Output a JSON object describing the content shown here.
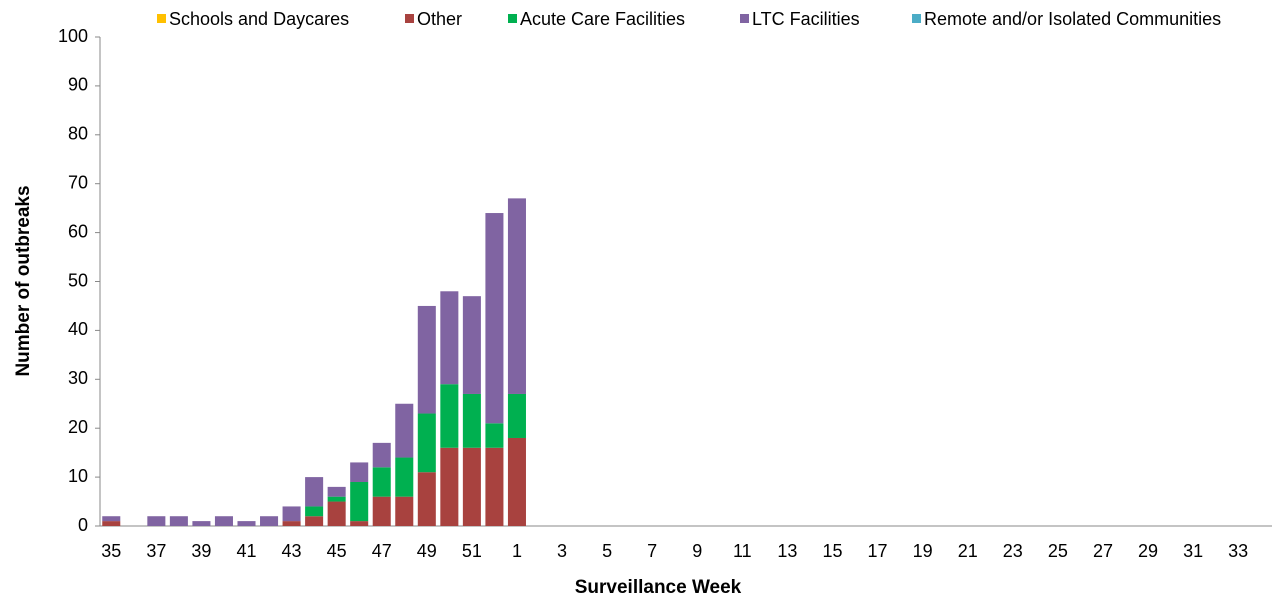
{
  "chart_data": {
    "type": "stacked_bar",
    "x_label": "Surveillance Week",
    "y_label": "Number of outbreaks",
    "categories": [
      "35",
      null,
      "37",
      null,
      "39",
      null,
      "41",
      null,
      "43",
      null,
      "45",
      null,
      "47",
      null,
      "49",
      null,
      "51",
      null,
      "1",
      null,
      "3",
      null,
      "5",
      null,
      "7",
      null,
      "9",
      null,
      "11",
      null,
      "13",
      null,
      "15",
      null,
      "17",
      null,
      "19",
      null,
      "21",
      null,
      "23",
      null,
      "25",
      null,
      "27",
      null,
      "29",
      null,
      "31",
      null,
      "33",
      null
    ],
    "series": [
      {
        "name": "Schools and Daycares",
        "color": "#ffc000",
        "values": [
          0,
          0,
          0,
          0,
          0,
          0,
          0,
          0,
          0,
          0,
          0,
          0,
          0,
          0,
          0,
          0,
          0,
          0,
          0,
          null,
          null,
          null,
          null,
          null,
          null,
          null,
          null,
          null,
          null,
          null,
          null,
          null,
          null,
          null,
          null,
          null,
          null,
          null,
          null,
          null,
          null,
          null,
          null,
          null,
          null,
          null,
          null,
          null,
          null,
          null,
          null,
          null
        ]
      },
      {
        "name": "Other",
        "color": "#a8423f",
        "values": [
          1,
          0,
          0,
          0,
          0,
          0,
          0,
          0,
          1,
          2,
          5,
          1,
          6,
          6,
          11,
          16,
          16,
          16,
          18,
          null,
          null,
          null,
          null,
          null,
          null,
          null,
          null,
          null,
          null,
          null,
          null,
          null,
          null,
          null,
          null,
          null,
          null,
          null,
          null,
          null,
          null,
          null,
          null,
          null,
          null,
          null,
          null,
          null,
          null,
          null,
          null,
          null
        ]
      },
      {
        "name": "Acute Care Facilities",
        "color": "#00b050",
        "values": [
          0,
          0,
          0,
          0,
          0,
          0,
          0,
          0,
          0,
          2,
          1,
          8,
          6,
          8,
          12,
          13,
          11,
          5,
          9,
          null,
          null,
          null,
          null,
          null,
          null,
          null,
          null,
          null,
          null,
          null,
          null,
          null,
          null,
          null,
          null,
          null,
          null,
          null,
          null,
          null,
          null,
          null,
          null,
          null,
          null,
          null,
          null,
          null,
          null,
          null,
          null,
          null
        ]
      },
      {
        "name": "LTC Facilities",
        "color": "#8064a2",
        "values": [
          1,
          0,
          2,
          2,
          1,
          2,
          1,
          2,
          3,
          6,
          2,
          4,
          5,
          11,
          22,
          19,
          20,
          43,
          40,
          null,
          null,
          null,
          null,
          null,
          null,
          null,
          null,
          null,
          null,
          null,
          null,
          null,
          null,
          null,
          null,
          null,
          null,
          null,
          null,
          null,
          null,
          null,
          null,
          null,
          null,
          null,
          null,
          null,
          null,
          null,
          null,
          null
        ]
      },
      {
        "name": "Remote and/or Isolated Communities",
        "color": "#4bacc6",
        "values": [
          0,
          0,
          0,
          0,
          0,
          0,
          0,
          0,
          0,
          0,
          0,
          0,
          0,
          0,
          0,
          0,
          0,
          0,
          0,
          null,
          null,
          null,
          null,
          null,
          null,
          null,
          null,
          null,
          null,
          null,
          null,
          null,
          null,
          null,
          null,
          null,
          null,
          null,
          null,
          null,
          null,
          null,
          null,
          null,
          null,
          null,
          null,
          null,
          null,
          null,
          null,
          null
        ]
      }
    ],
    "ylim": [
      0,
      100
    ],
    "yticks": [
      0,
      10,
      20,
      30,
      40,
      50,
      60,
      70,
      80,
      90,
      100
    ],
    "grid": false,
    "legend": "top"
  }
}
